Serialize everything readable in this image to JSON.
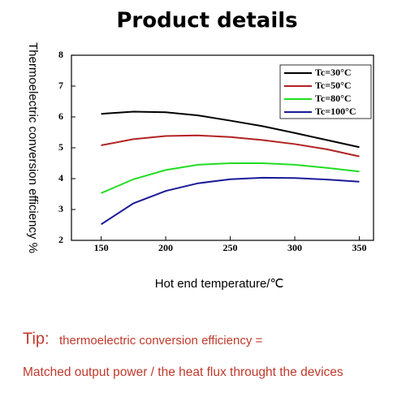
{
  "chart_data": {
    "type": "line",
    "title": "Product details",
    "x_label": "Hot end temperature/℃",
    "y_label": "Thermoelectric conversion efficiency %",
    "x": [
      150,
      175,
      200,
      225,
      250,
      275,
      300,
      325,
      350
    ],
    "series": [
      {
        "name": "Tc=30°C",
        "color": "#000000",
        "values": [
          6.1,
          6.17,
          6.15,
          6.05,
          5.88,
          5.7,
          5.48,
          5.25,
          5.02
        ]
      },
      {
        "name": "Tc=50°C",
        "color": "#b22222",
        "values": [
          5.08,
          5.28,
          5.38,
          5.4,
          5.35,
          5.25,
          5.12,
          4.95,
          4.72
        ]
      },
      {
        "name": "Tc=80°C",
        "color": "#22dd22",
        "values": [
          3.53,
          3.98,
          4.28,
          4.45,
          4.5,
          4.5,
          4.45,
          4.35,
          4.23
        ]
      },
      {
        "name": "Tc=100°C",
        "color": "#1a1a99",
        "values": [
          2.52,
          3.2,
          3.6,
          3.85,
          3.98,
          4.03,
          4.02,
          3.97,
          3.9
        ]
      }
    ],
    "xlim": [
      127,
      361
    ],
    "xticks": [
      150,
      200,
      250,
      300,
      350
    ],
    "ylim": [
      2,
      8
    ],
    "yticks": [
      2,
      3,
      4,
      5,
      6,
      7,
      8
    ],
    "grid": false,
    "legend": "upper right"
  },
  "tip": {
    "label": "Tip:",
    "line1": "thermoelectric conversion efficiency =",
    "line2": "Matched output power / the heat flux throught the devices"
  }
}
